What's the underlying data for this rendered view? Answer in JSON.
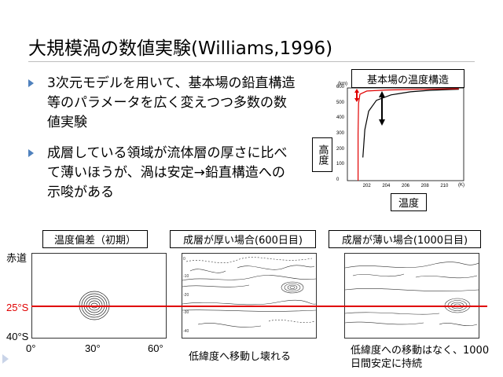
{
  "slide": {
    "title": "大規模渦の数値実験(Williams,1996)",
    "bullets": [
      "3次元モデルを用いて、基本場の鉛直構造等のパラメータを広く変えつつ多数の数値実験",
      "成層している領域が流体層の厚さに比べて薄いほうが、渦は安定→鉛直構造への示唆がある"
    ]
  },
  "inset": {
    "title": "基本場の温度構造",
    "ylabel": "高度",
    "xlabel": "温度",
    "y_unit": "(km)",
    "x_unit": "(K)",
    "y_ticks": [
      "600",
      "500",
      "400",
      "300",
      "200",
      "100",
      "0"
    ],
    "x_ticks": [
      "202",
      "204",
      "206",
      "208",
      "210"
    ]
  },
  "chart_data": {
    "type": "line",
    "xlabel": "温度",
    "ylabel": "高度",
    "xlim": [
      200,
      212
    ],
    "ylim": [
      0,
      600
    ],
    "x_unit": "K",
    "y_unit": "km",
    "series": [
      {
        "color": "#000000",
        "x": [
          201.6,
          201.8,
          202.2,
          203.0,
          204.5,
          206.5,
          208.5,
          210.5,
          211.5
        ],
        "y": [
          150,
          330,
          450,
          520,
          555,
          575,
          585,
          590,
          592
        ]
      },
      {
        "color": "#e00000",
        "x": [
          201.1,
          201.1,
          201.15,
          201.3,
          202.0,
          204.0,
          207.0,
          210.0,
          211.5
        ],
        "y": [
          0,
          300,
          500,
          560,
          580,
          587,
          591,
          594,
          595
        ]
      }
    ]
  },
  "figure": {
    "panel_labels": [
      "温度偏差（初期）",
      "成層が厚い場合(600日目)",
      "成層が薄い場合(1000日目)"
    ],
    "lat_labels": [
      "赤道",
      "25°S",
      "40°S"
    ],
    "lon_labels": [
      "0°",
      "30°",
      "60°"
    ],
    "captions": [
      "低緯度へ移動し壊れる",
      "低緯度への移動はなく、1000日間安定に持続"
    ],
    "marker_color": "#e00000"
  }
}
